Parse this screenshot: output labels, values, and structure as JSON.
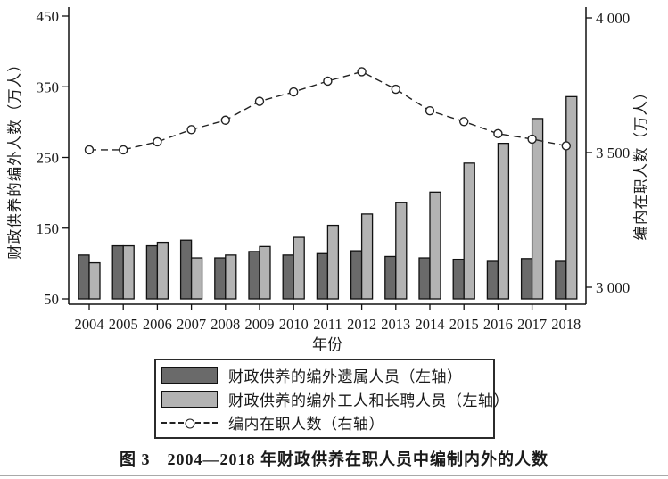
{
  "caption": "图 3　2004—2018 年财政供养在职人员中编制内外的人数",
  "chart_data": {
    "type": "bar+line",
    "x": [
      2004,
      2005,
      2006,
      2007,
      2008,
      2009,
      2010,
      2011,
      2012,
      2013,
      2014,
      2015,
      2016,
      2017,
      2018
    ],
    "xlabel": "年份",
    "left_axis": {
      "label": "财政供养的编外人数（万人）",
      "lim": [
        50,
        450
      ],
      "ticks": [
        50,
        150,
        250,
        350,
        450
      ],
      "tick_labels": [
        "50",
        "150",
        "250",
        "350",
        "450"
      ]
    },
    "right_axis": {
      "label": "编内在职人数（万人）",
      "lim": [
        3000,
        4000
      ],
      "ticks": [
        3000,
        3500,
        4000
      ],
      "tick_labels": [
        "3 000",
        "3 500",
        "4 000"
      ]
    },
    "grid": false,
    "legend_position": "bottom-box",
    "series": [
      {
        "name": "财政供养的编外遗属人员（左轴）",
        "type": "bar",
        "axis": "left",
        "color": "#6a6a6a",
        "values": [
          112,
          125,
          125,
          133,
          108,
          117,
          112,
          114,
          118,
          110,
          108,
          106,
          103,
          107,
          103
        ]
      },
      {
        "name": "财政供养的编外工人和长聘人员（左轴）",
        "type": "bar",
        "axis": "left",
        "color": "#b3b3b3",
        "values": [
          101,
          125,
          130,
          108,
          112,
          124,
          137,
          154,
          170,
          186,
          201,
          242,
          270,
          305,
          336
        ]
      },
      {
        "name": "编内在职人数（右轴）",
        "type": "line",
        "axis": "right",
        "style": "dashed-open-circle",
        "color": "#222222",
        "values": [
          3510,
          3510,
          3540,
          3585,
          3620,
          3690,
          3725,
          3765,
          3800,
          3735,
          3655,
          3615,
          3570,
          3550,
          3525
        ]
      }
    ]
  }
}
